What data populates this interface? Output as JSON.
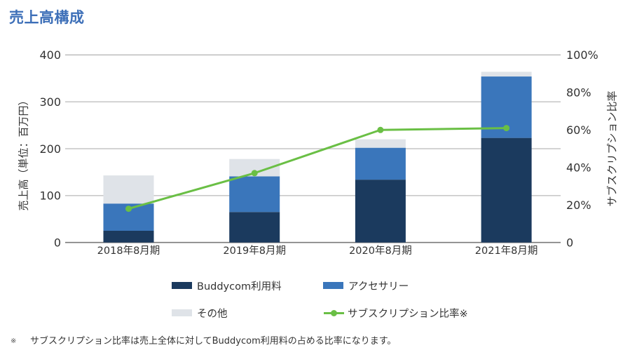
{
  "title": "売上高構成",
  "axes": {
    "left_label": "売上高（単位：百万円）",
    "right_label": "サブスクリプション比率"
  },
  "legend": [
    {
      "label": "Buddycom利用料",
      "type": "box",
      "color": "#1b3a5e"
    },
    {
      "label": "アクセサリー",
      "type": "box",
      "color": "#3a76bb"
    },
    {
      "label": "その他",
      "type": "box",
      "color": "#dfe3e8"
    },
    {
      "label": "サブスクリプション比率※",
      "type": "line",
      "color": "#6abf45"
    }
  ],
  "footnote": {
    "mark": "※",
    "text": "サブスクリプション比率は売上全体に対してBuddycom利用料の占める比率になります。"
  },
  "chart_data": {
    "type": "bar",
    "stacked": true,
    "title": "売上高構成",
    "xlabel": "",
    "ylabel": "売上高（単位：百万円）",
    "y2label": "サブスクリプション比率",
    "ylim": [
      0,
      400
    ],
    "y2lim": [
      0,
      100
    ],
    "grid": true,
    "legend_position": "bottom",
    "categories": [
      "2018年8月期",
      "2019年8月期",
      "2020年8月期",
      "2021年8月期"
    ],
    "yticks": [
      {
        "value": 400,
        "label": "400"
      },
      {
        "value": 300,
        "label": "300"
      },
      {
        "value": 200,
        "label": "200"
      },
      {
        "value": 100,
        "label": "100"
      },
      {
        "value": 0,
        "label": "0"
      }
    ],
    "y2ticks": [
      {
        "value": 100,
        "label": "100%"
      },
      {
        "value": 80,
        "label": "80%"
      },
      {
        "value": 60,
        "label": "60%"
      },
      {
        "value": 40,
        "label": "40%"
      },
      {
        "value": 20,
        "label": "20%"
      },
      {
        "value": 0,
        "label": "0"
      }
    ],
    "series": [
      {
        "name": "Buddycom利用料",
        "type": "bar",
        "axis": "left",
        "color": "#1b3a5e",
        "values": [
          25,
          65,
          134,
          223
        ]
      },
      {
        "name": "アクセサリー",
        "type": "bar",
        "axis": "left",
        "color": "#3a76bb",
        "values": [
          58,
          76,
          68,
          131
        ]
      },
      {
        "name": "その他",
        "type": "bar",
        "axis": "left",
        "color": "#dfe3e8",
        "values": [
          60,
          37,
          18,
          10
        ]
      },
      {
        "name": "サブスクリプション比率※",
        "type": "line",
        "axis": "right",
        "unit": "%",
        "color": "#6abf45",
        "values": [
          18,
          37,
          60,
          61
        ]
      }
    ],
    "totals": [
      143,
      178,
      220,
      364
    ]
  }
}
